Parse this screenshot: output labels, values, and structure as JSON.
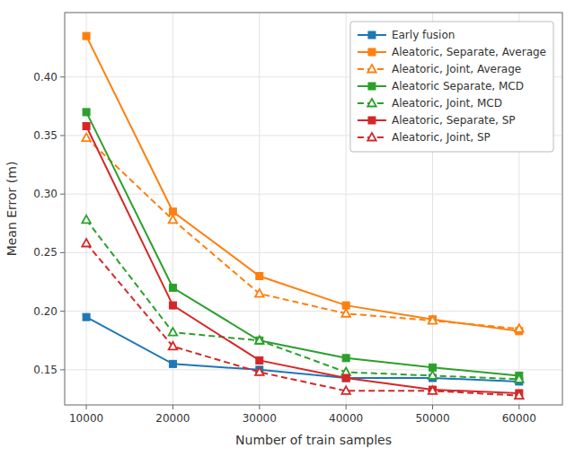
{
  "chart_data": {
    "type": "line",
    "x_label": "Number of train samples",
    "y_label": "Mean Error (m)",
    "x": [
      10000,
      20000,
      30000,
      40000,
      50000,
      60000
    ],
    "series": [
      {
        "name": "Early fusion",
        "color": "#1f77b4",
        "line_style": "solid",
        "marker": "square",
        "values": [
          0.195,
          0.155,
          0.15,
          0.143,
          0.143,
          0.14
        ]
      },
      {
        "name": "Aleatoric, Separate, Average",
        "color": "#ff7f0e",
        "line_style": "solid",
        "marker": "square",
        "values": [
          0.435,
          0.285,
          0.23,
          0.205,
          0.193,
          0.183
        ]
      },
      {
        "name": "Aleatoric, Joint, Average",
        "color": "#ff7f0e",
        "line_style": "dashed",
        "marker": "open-triangle",
        "values": [
          0.348,
          0.278,
          0.215,
          0.198,
          0.192,
          0.185
        ]
      },
      {
        "name": "Aleatoric Separate, MCD",
        "color": "#2ca02c",
        "line_style": "solid",
        "marker": "square",
        "values": [
          0.37,
          0.22,
          0.175,
          0.16,
          0.152,
          0.145
        ]
      },
      {
        "name": "Aleatoric, Joint, MCD",
        "color": "#2ca02c",
        "line_style": "dashed",
        "marker": "open-triangle",
        "values": [
          0.278,
          0.182,
          0.175,
          0.148,
          0.145,
          0.142
        ]
      },
      {
        "name": "Aleatoric, Separate, SP",
        "color": "#d62728",
        "line_style": "solid",
        "marker": "square",
        "values": [
          0.358,
          0.205,
          0.158,
          0.143,
          0.133,
          0.13
        ]
      },
      {
        "name": "Aleatoric, Joint, SP",
        "color": "#d62728",
        "line_style": "dashed",
        "marker": "open-triangle",
        "values": [
          0.258,
          0.17,
          0.148,
          0.132,
          0.132,
          0.128
        ]
      }
    ],
    "xlim": [
      7500,
      65000
    ],
    "ylim": [
      0.12,
      0.455
    ],
    "xticks": [
      10000,
      20000,
      30000,
      40000,
      50000,
      60000
    ],
    "yticks": [
      0.15,
      {
        "value": 0.2,
        "label": "0.20"
      },
      0.25,
      {
        "value": 0.3,
        "label": "0.30"
      },
      0.35,
      {
        "value": 0.4,
        "label": "0.40"
      }
    ],
    "grid": true,
    "legend": "upper-right"
  }
}
